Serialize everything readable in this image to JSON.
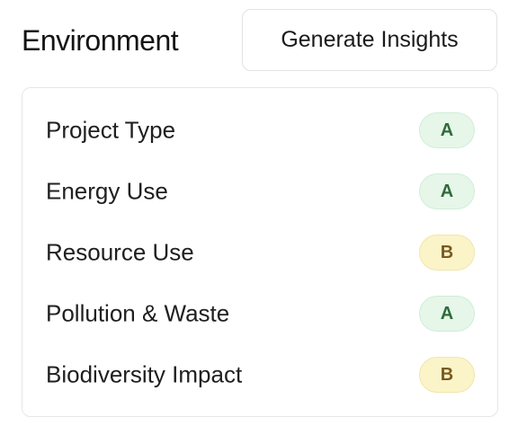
{
  "header": {
    "title": "Environment",
    "button_label": "Generate Insights"
  },
  "items": [
    {
      "label": "Project Type",
      "grade": "A"
    },
    {
      "label": "Energy Use",
      "grade": "A"
    },
    {
      "label": "Resource Use",
      "grade": "B"
    },
    {
      "label": "Pollution & Waste",
      "grade": "A"
    },
    {
      "label": "Biodiversity Impact",
      "grade": "B"
    }
  ],
  "colors": {
    "grade_a_bg": "#e6f6e9",
    "grade_a_text": "#2f6b3b",
    "grade_b_bg": "#fbf4c9",
    "grade_b_text": "#7a5a1e"
  }
}
